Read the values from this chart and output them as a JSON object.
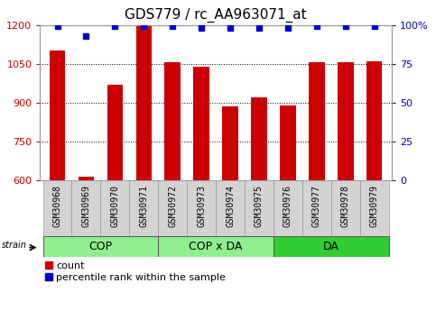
{
  "title": "GDS779 / rc_AA963071_at",
  "samples": [
    "GSM30968",
    "GSM30969",
    "GSM30970",
    "GSM30971",
    "GSM30972",
    "GSM30973",
    "GSM30974",
    "GSM30975",
    "GSM30976",
    "GSM30977",
    "GSM30978",
    "GSM30979"
  ],
  "counts": [
    1100,
    615,
    970,
    1200,
    1055,
    1040,
    885,
    920,
    890,
    1055,
    1055,
    1060
  ],
  "percentiles": [
    99,
    93,
    99,
    99,
    99,
    98,
    98,
    98,
    98,
    99,
    99,
    99
  ],
  "groups": [
    {
      "label": "COP",
      "start": 0,
      "end": 4,
      "color": "#90EE90"
    },
    {
      "label": "COP x DA",
      "start": 4,
      "end": 8,
      "color": "#90EE90"
    },
    {
      "label": "DA",
      "start": 8,
      "end": 12,
      "color": "#32CD32"
    }
  ],
  "ylim_left": [
    600,
    1200
  ],
  "ylim_right": [
    0,
    100
  ],
  "yticks_left": [
    600,
    750,
    900,
    1050,
    1200
  ],
  "yticks_right": [
    0,
    25,
    50,
    75,
    100
  ],
  "bar_color": "#CC0000",
  "dot_color": "#0000CC",
  "left_tick_color": "#CC0000",
  "right_tick_color": "#0000CC",
  "title_fontsize": 11,
  "tick_fontsize": 8,
  "sample_fontsize": 7,
  "group_fontsize": 9,
  "legend_fontsize": 8
}
